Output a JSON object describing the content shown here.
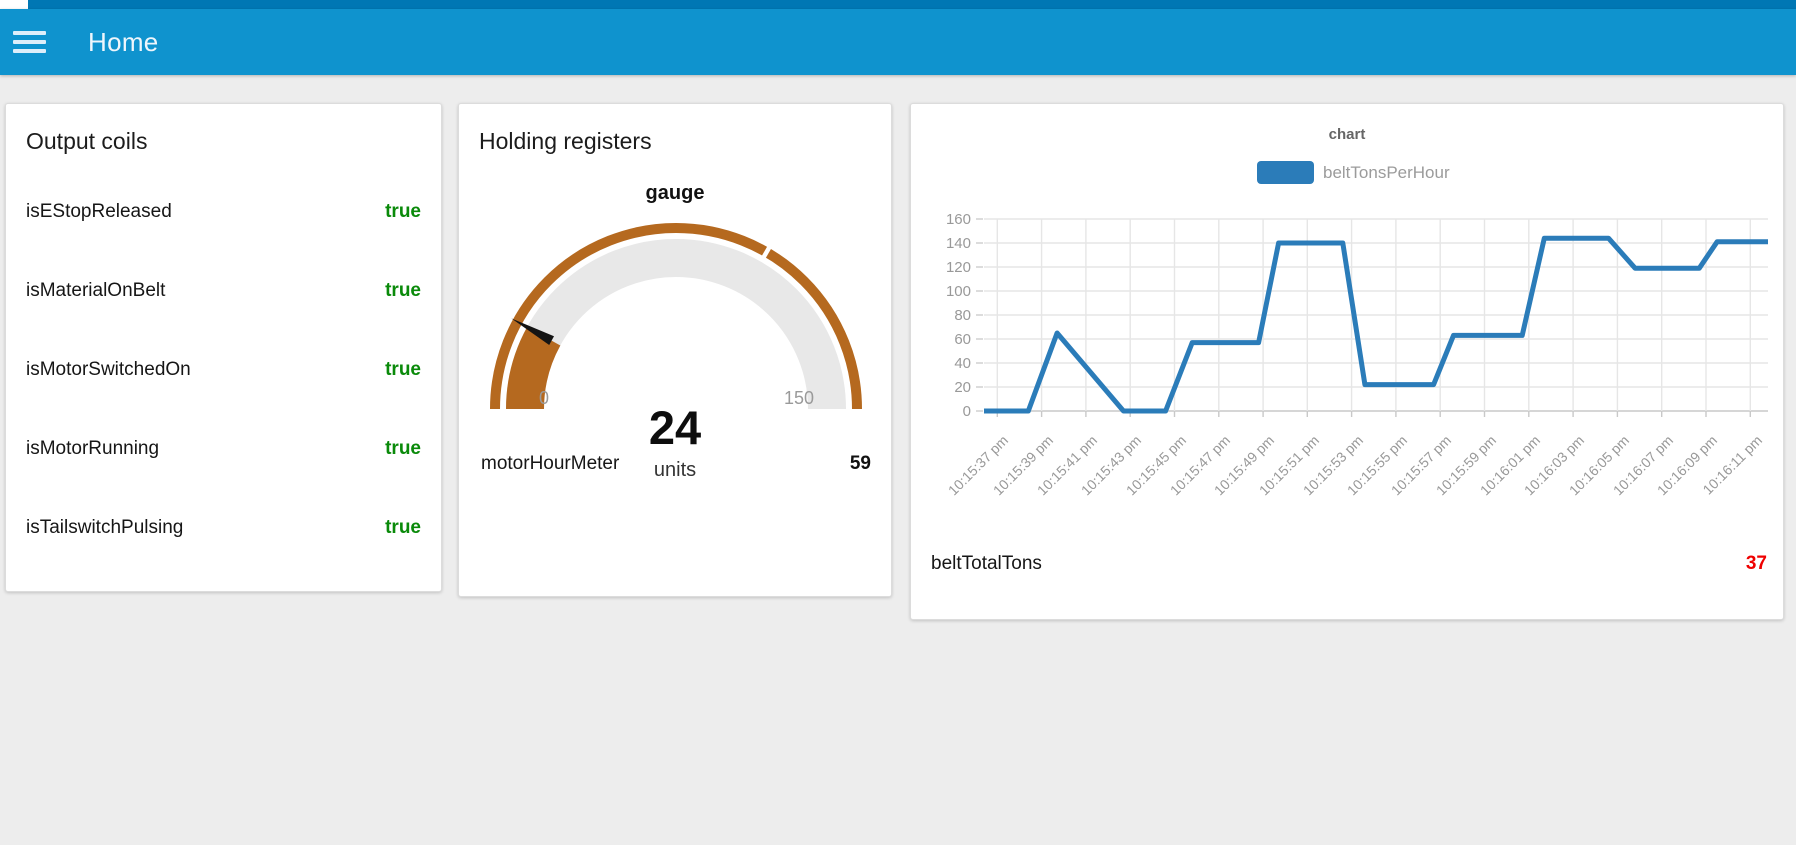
{
  "header": {
    "title": "Home",
    "menu_icon": "hamburger"
  },
  "colors": {
    "topstrip": "#0077b4",
    "appbar": "#0f93ce",
    "bool_true_green": "#0a8a0a",
    "gauge_brown": "#b5691f",
    "gauge_track": "#e8e8e8",
    "line_blue": "#2b7cb9",
    "total_red": "#ef0000",
    "axis_gray": "#999999"
  },
  "cards": {
    "output_coils": {
      "title": "Output coils",
      "rows": [
        {
          "label": "isEStopReleased",
          "value": "true"
        },
        {
          "label": "isMaterialOnBelt",
          "value": "true"
        },
        {
          "label": "isMotorSwitchedOn",
          "value": "true"
        },
        {
          "label": "isMotorRunning",
          "value": "true"
        },
        {
          "label": "isTailswitchPulsing",
          "value": "true"
        }
      ]
    },
    "holding_registers": {
      "title": "Holding registers",
      "gauge": {
        "title": "gauge",
        "value": 24,
        "units": "units",
        "min": 0,
        "max": 150,
        "gap_at": 100,
        "color": "#b5691f",
        "track_color": "#e8e8e8"
      },
      "rows": [
        {
          "label": "motorHourMeter",
          "value": "59"
        }
      ]
    },
    "chart": {
      "title": "chart",
      "total_row": {
        "label": "beltTotalTons",
        "value": "37"
      }
    }
  },
  "chart_data": {
    "type": "line",
    "title": "chart",
    "legend_position": "top",
    "grid": true,
    "ylim": [
      0,
      160
    ],
    "y_ticks": [
      0,
      20,
      40,
      60,
      80,
      100,
      120,
      140,
      160
    ],
    "x_tick_seconds": [
      0,
      2,
      4,
      6,
      8,
      10,
      12,
      14,
      16,
      18,
      20,
      22,
      24,
      26,
      28,
      30,
      32,
      34
    ],
    "x_tick_labels": [
      "10:15:37 pm",
      "10:15:39 pm",
      "10:15:41 pm",
      "10:15:43 pm",
      "10:15:45 pm",
      "10:15:47 pm",
      "10:15:49 pm",
      "10:15:51 pm",
      "10:15:53 pm",
      "10:15:55 pm",
      "10:15:57 pm",
      "10:15:59 pm",
      "10:16:01 pm",
      "10:16:03 pm",
      "10:16:05 pm",
      "10:16:07 pm",
      "10:16:09 pm",
      "10:16:11 pm"
    ],
    "xlim_seconds": [
      -0.6,
      34.8
    ],
    "series": [
      {
        "name": "beltTonsPerHour",
        "color": "#2b7cb9",
        "points_t_v": [
          [
            -0.6,
            0
          ],
          [
            1.4,
            0
          ],
          [
            2.7,
            65
          ],
          [
            5.7,
            0
          ],
          [
            7.6,
            0
          ],
          [
            8.8,
            57
          ],
          [
            11.8,
            57
          ],
          [
            12.7,
            140
          ],
          [
            15.6,
            140
          ],
          [
            16.6,
            22
          ],
          [
            19.7,
            22
          ],
          [
            20.6,
            63
          ],
          [
            23.7,
            63
          ],
          [
            24.7,
            144
          ],
          [
            27.6,
            144
          ],
          [
            28.8,
            119
          ],
          [
            31.7,
            119
          ],
          [
            32.5,
            141
          ],
          [
            34.8,
            141
          ]
        ]
      }
    ]
  }
}
